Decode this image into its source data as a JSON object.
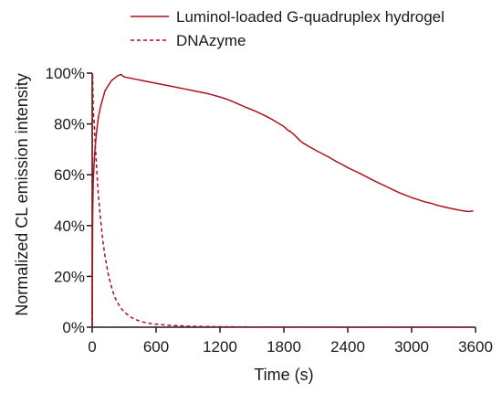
{
  "chart_data": {
    "type": "line",
    "title": "",
    "xlabel": "Time (s)",
    "ylabel": "Normalized CL emission intensity",
    "xlim": [
      0,
      3600
    ],
    "ylim": [
      0,
      100
    ],
    "x_ticks": [
      0,
      600,
      1200,
      1800,
      2400,
      3000,
      3600
    ],
    "x_tick_labels": [
      "0",
      "600",
      "1200",
      "1800",
      "2400",
      "3000",
      "3600"
    ],
    "y_ticks": [
      0,
      20,
      40,
      60,
      80,
      100
    ],
    "y_tick_labels": [
      "0%",
      "20%",
      "40%",
      "60%",
      "80%",
      "100%"
    ],
    "grid": false,
    "legend_position": "top-right",
    "series": [
      {
        "name": "Luminol-loaded G-quadruplex hydrogel",
        "line_style": "solid",
        "color": "#a8121e",
        "x": [
          0,
          5,
          10,
          20,
          30,
          40,
          50,
          60,
          80,
          100,
          120,
          150,
          180,
          210,
          240,
          270,
          300,
          360,
          420,
          480,
          540,
          600,
          660,
          720,
          780,
          840,
          900,
          960,
          1020,
          1080,
          1140,
          1200,
          1260,
          1320,
          1380,
          1440,
          1500,
          1560,
          1620,
          1680,
          1740,
          1800,
          1830,
          1860,
          1890,
          1920,
          1950,
          1980,
          2040,
          2100,
          2160,
          2220,
          2280,
          2340,
          2400,
          2460,
          2520,
          2580,
          2640,
          2700,
          2760,
          2820,
          2880,
          2940,
          3000,
          3060,
          3120,
          3180,
          3240,
          3300,
          3360,
          3420,
          3480,
          3540,
          3580
        ],
        "y": [
          0,
          45,
          58,
          66,
          72,
          76,
          80,
          83,
          87,
          90,
          93,
          95,
          97,
          98,
          99,
          99.5,
          98.5,
          98,
          97.5,
          97,
          96.5,
          96,
          95.5,
          95,
          94.5,
          94,
          93.5,
          93,
          92.5,
          92,
          91.3,
          90.6,
          89.8,
          88.8,
          87.7,
          86.6,
          85.6,
          84.5,
          83.3,
          82,
          80.5,
          79,
          77.8,
          77,
          76,
          74.8,
          73.5,
          72.5,
          71,
          69.6,
          68.3,
          67,
          65.5,
          64.2,
          62.8,
          61.6,
          60.4,
          59.1,
          57.8,
          56.6,
          55.4,
          54.2,
          53,
          52,
          51,
          50.2,
          49.4,
          48.8,
          48,
          47.4,
          46.8,
          46.3,
          45.8,
          45.5,
          45.8
        ]
      },
      {
        "name": "DNAzyme",
        "line_style": "dashed",
        "color": "#a8121e",
        "x": [
          0,
          4,
          10,
          20,
          30,
          40,
          50,
          60,
          80,
          100,
          120,
          150,
          180,
          210,
          240,
          270,
          300,
          360,
          420,
          480,
          540,
          600,
          700,
          800,
          900,
          1000,
          1200,
          1500,
          1800,
          2400,
          3000,
          3600
        ],
        "y": [
          0,
          100,
          85,
          80,
          71,
          64,
          57,
          51,
          42,
          34,
          28,
          21,
          16,
          12,
          9.5,
          7.5,
          6,
          4,
          2.8,
          2,
          1.5,
          1.2,
          0.8,
          0.6,
          0.4,
          0.3,
          0.2,
          0.1,
          0.1,
          0,
          0,
          0
        ]
      }
    ]
  }
}
